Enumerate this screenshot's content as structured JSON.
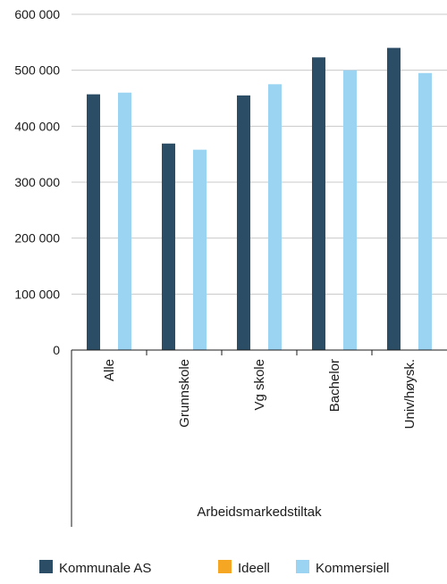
{
  "chart_data": {
    "type": "bar",
    "categories": [
      "Alle",
      "Grunnskole",
      "Vg skole",
      "Bachelor",
      "Univ/høysk."
    ],
    "group_label": "Arbeidsmarkedstiltak",
    "series": [
      {
        "name": "Kommunale AS",
        "color": "#2b4d66",
        "values": [
          457000,
          369000,
          455000,
          523000,
          540000
        ]
      },
      {
        "name": "Ideell",
        "color": "#f5a623",
        "values": [
          null,
          null,
          null,
          null,
          null
        ]
      },
      {
        "name": "Kommersiell",
        "color": "#9bd3f2",
        "values": [
          460000,
          358000,
          475000,
          500000,
          495000
        ]
      }
    ],
    "y_ticks": [
      {
        "value": 0,
        "label": "0"
      },
      {
        "value": 100000,
        "label": "100 000"
      },
      {
        "value": 200000,
        "label": "200 000"
      },
      {
        "value": 300000,
        "label": "300 000"
      },
      {
        "value": 400000,
        "label": "400 000"
      },
      {
        "value": 500000,
        "label": "500 000"
      },
      {
        "value": 600000,
        "label": "600 000"
      }
    ],
    "ylim": [
      0,
      600000
    ],
    "grid": true,
    "legend_position": "bottom"
  }
}
